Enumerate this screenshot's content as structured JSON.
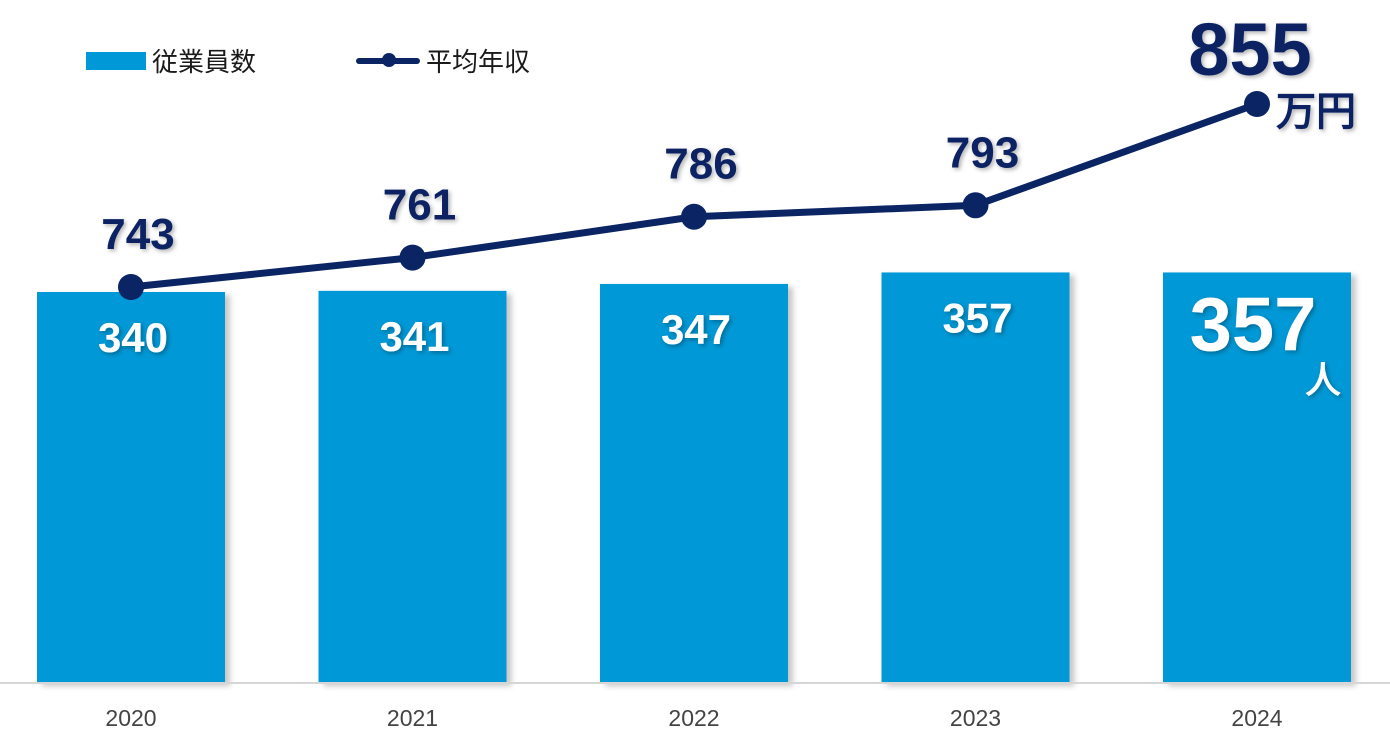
{
  "chart_data": {
    "type": "bar",
    "categories": [
      "2020",
      "2021",
      "2022",
      "2023",
      "2024"
    ],
    "series": [
      {
        "name": "従業員数",
        "type": "bar",
        "values": [
          340,
          341,
          347,
          357,
          357
        ],
        "unit": "人",
        "color": "#0098d6"
      },
      {
        "name": "平均年収",
        "type": "line",
        "values": [
          743,
          761,
          786,
          793,
          855
        ],
        "unit": "万円",
        "color": "#0b2463"
      }
    ],
    "legend": "top-left",
    "grid": false
  }
}
